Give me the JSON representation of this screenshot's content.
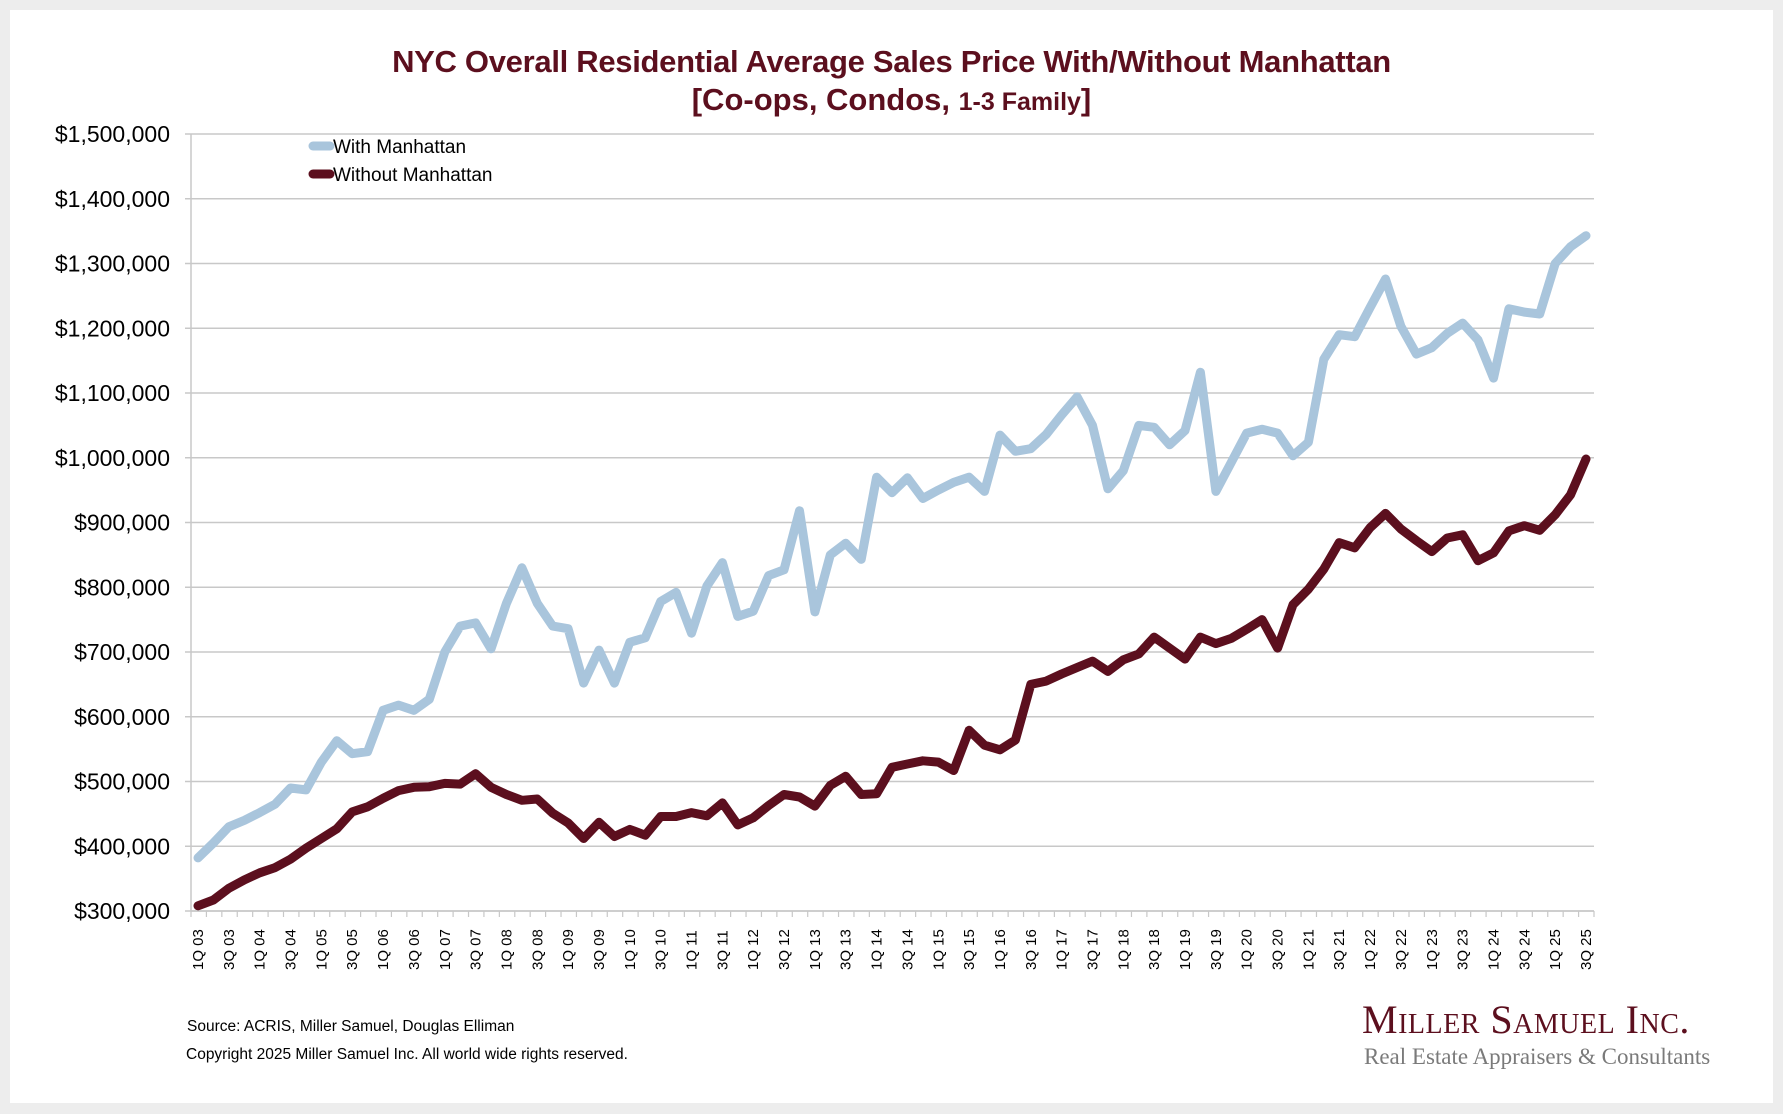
{
  "header": {
    "title_line1": "NYC Overall Residential Average Sales Price With/Without Manhattan",
    "title_line2_main": "[Co-ops, Condos, ",
    "title_line2_small": "1-3 Family",
    "title_line2_end": "]"
  },
  "footer": {
    "source": "Source: ACRIS, Miller Samuel, Douglas Elliman",
    "copyright": "Copyright 2025 Miller Samuel Inc.  All world wide rights reserved."
  },
  "logo": {
    "name": "Miller Samuel Inc.",
    "tagline": "Real Estate Appraisers & Consultants",
    "color": "#5c0f1e"
  },
  "chart_data": {
    "type": "line",
    "title": "NYC Overall Residential Average Sales Price With/Without Manhattan [Co-ops, Condos, 1-3 Family]",
    "xlabel": "",
    "ylabel": "",
    "ylim": [
      300000,
      1500000
    ],
    "yticks": [
      300000,
      400000,
      500000,
      600000,
      700000,
      800000,
      900000,
      1000000,
      1100000,
      1200000,
      1300000,
      1400000,
      1500000
    ],
    "ytick_labels": [
      "$300,000",
      "$400,000",
      "$500,000",
      "$600,000",
      "$700,000",
      "$800,000",
      "$900,000",
      "$1,000,000",
      "$1,100,000",
      "$1,200,000",
      "$1,300,000",
      "$1,400,000",
      "$1,500,000"
    ],
    "grid": true,
    "legend_position": "top-left",
    "x": [
      "1Q 03",
      "2Q 03",
      "3Q 03",
      "4Q 03",
      "1Q 04",
      "2Q 04",
      "3Q 04",
      "4Q 04",
      "1Q 05",
      "2Q 05",
      "3Q 05",
      "4Q 05",
      "1Q 06",
      "2Q 06",
      "3Q 06",
      "4Q 06",
      "1Q 07",
      "2Q 07",
      "3Q 07",
      "4Q 07",
      "1Q 08",
      "2Q 08",
      "3Q 08",
      "4Q 08",
      "1Q 09",
      "2Q 09",
      "3Q 09",
      "4Q 09",
      "1Q 10",
      "2Q 10",
      "3Q 10",
      "4Q 10",
      "1Q 11",
      "2Q 11",
      "3Q 11",
      "4Q 11",
      "1Q 12",
      "2Q 12",
      "3Q 12",
      "4Q 12",
      "1Q 13",
      "2Q 13",
      "3Q 13",
      "4Q 13",
      "1Q 14",
      "2Q 14",
      "3Q 14",
      "4Q 14",
      "1Q 15",
      "2Q 15",
      "3Q 15",
      "4Q 15",
      "1Q 16",
      "2Q 16",
      "3Q 16",
      "4Q 16",
      "1Q 17",
      "2Q 17",
      "3Q 17",
      "4Q 17",
      "1Q 18",
      "2Q 18",
      "3Q 18",
      "4Q 18",
      "1Q 19",
      "2Q 19",
      "3Q 19",
      "4Q 19",
      "1Q 20",
      "2Q 20",
      "3Q 20",
      "4Q 20",
      "1Q 21",
      "2Q 21",
      "3Q 21",
      "4Q 21",
      "1Q 22",
      "2Q 22",
      "3Q 22",
      "4Q 22",
      "1Q 23",
      "2Q 23",
      "3Q 23",
      "4Q 23",
      "1Q 24",
      "2Q 24",
      "3Q 24",
      "4Q 24",
      "1Q 25",
      "2Q 25",
      "3Q 25"
    ],
    "tick_labels_shown": [
      "1Q 03",
      "3Q 03",
      "1Q 04",
      "3Q 04",
      "1Q 05",
      "3Q 05",
      "1Q 06",
      "3Q 06",
      "1Q 07",
      "3Q 07",
      "1Q 08",
      "3Q 08",
      "1Q 09",
      "3Q 09",
      "1Q 10",
      "3Q 10",
      "1Q 11",
      "3Q 11",
      "1Q 12",
      "3Q 12",
      "1Q 13",
      "3Q 13",
      "1Q 14",
      "3Q 14",
      "1Q 15",
      "3Q 15",
      "1Q 16",
      "3Q 16",
      "1Q 17",
      "3Q 17",
      "1Q 18",
      "3Q 18",
      "1Q 19",
      "3Q 19",
      "1Q 20",
      "3Q 20",
      "1Q 21",
      "3Q 21",
      "1Q 22",
      "3Q 22",
      "1Q 23",
      "3Q 23",
      "1Q 24",
      "3Q 24",
      "1Q 25",
      "3Q 25"
    ],
    "series": [
      {
        "name": "With Manhattan",
        "color": "#a9c5dc",
        "values": [
          382000,
          405000,
          430000,
          440000,
          452000,
          465000,
          490000,
          487000,
          530000,
          563000,
          543000,
          546000,
          610000,
          618000,
          610000,
          627000,
          700000,
          740000,
          745000,
          705000,
          775000,
          830000,
          775000,
          740000,
          736000,
          652000,
          703000,
          652000,
          715000,
          722000,
          778000,
          792000,
          729000,
          802000,
          838000,
          755000,
          763000,
          818000,
          827000,
          918000,
          762000,
          850000,
          868000,
          843000,
          970000,
          946000,
          969000,
          937000,
          950000,
          962000,
          970000,
          948000,
          1035000,
          1010000,
          1014000,
          1036000,
          1066000,
          1094000,
          1050000,
          952000,
          980000,
          1050000,
          1047000,
          1020000,
          1042000,
          1132000,
          948000,
          993000,
          1038000,
          1044000,
          1038000,
          1003000,
          1024000,
          1152000,
          1190000,
          1187000,
          1232000,
          1276000,
          1203000,
          1160000,
          1170000,
          1192000,
          1208000,
          1182000,
          1123000,
          1230000,
          1225000,
          1222000,
          1300000,
          1326000,
          1343000
        ]
      },
      {
        "name": "Without Manhattan",
        "color": "#5c0f1e",
        "values": [
          308000,
          317000,
          335000,
          348000,
          359000,
          367000,
          380000,
          397000,
          412000,
          427000,
          453000,
          461000,
          474000,
          486000,
          491000,
          492000,
          497000,
          496000,
          512000,
          491000,
          480000,
          471000,
          473000,
          451000,
          436000,
          412000,
          437000,
          415000,
          426000,
          417000,
          446000,
          446000,
          452000,
          447000,
          467000,
          433000,
          444000,
          463000,
          480000,
          476000,
          462000,
          494000,
          508000,
          480000,
          481000,
          522000,
          527000,
          532000,
          530000,
          517000,
          579000,
          556000,
          549000,
          564000,
          650000,
          655000,
          666000,
          676000,
          686000,
          670000,
          688000,
          697000,
          723000,
          706000,
          689000,
          723000,
          713000,
          721000,
          735000,
          750000,
          706000,
          773000,
          797000,
          828000,
          869000,
          861000,
          892000,
          914000,
          890000,
          872000,
          855000,
          876000,
          881000,
          841000,
          853000,
          887000,
          895000,
          888000,
          912000,
          943000,
          998000
        ]
      }
    ]
  }
}
